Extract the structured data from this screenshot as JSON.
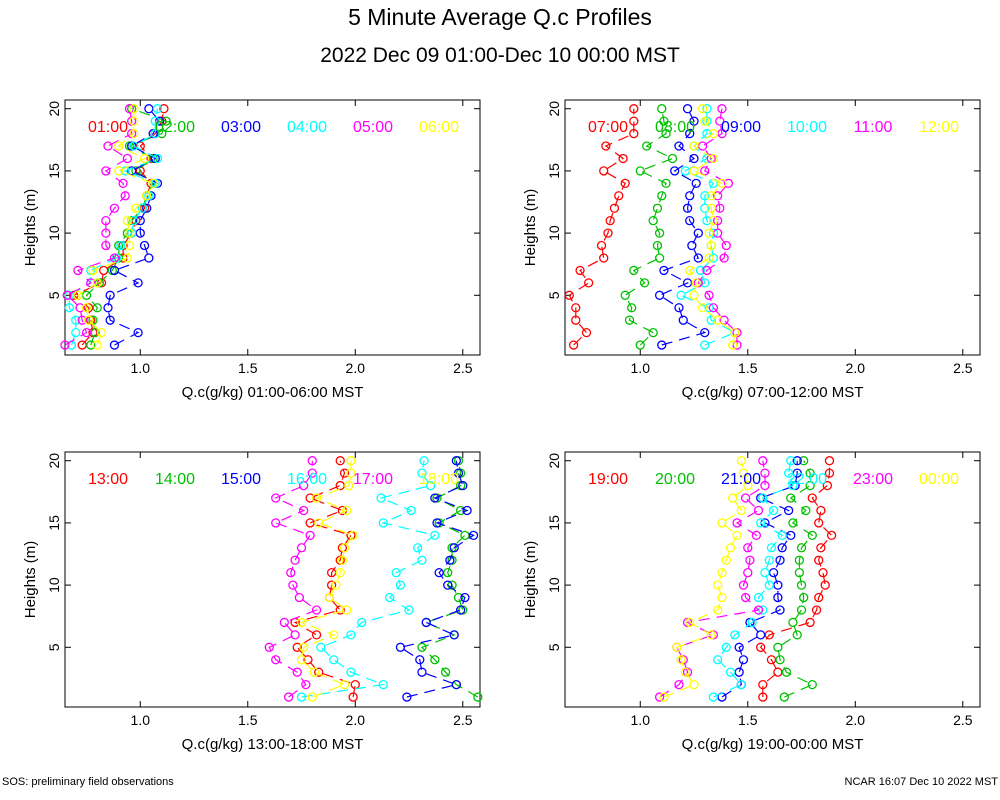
{
  "page": {
    "title": "5 Minute Average Q.c Profiles",
    "subtitle": "2022 Dec 09 01:00-Dec 10 00:00 MST",
    "footer_left": "SOS: preliminary field observations",
    "footer_right": "NCAR 16:07 Dec 10 2022 MST"
  },
  "colors": [
    "#ff0000",
    "#00c000",
    "#0000ff",
    "#00ffff",
    "#ff00ff",
    "#ffff00"
  ],
  "chart_data": [
    {
      "type": "line",
      "xlabel": "Q.c(g/kg) 01:00-06:00 MST",
      "ylabel": "Heights (m)",
      "xlim": [
        0.65,
        2.58
      ],
      "ylim": [
        0.2,
        20.7
      ],
      "xticks": [
        1.0,
        1.5,
        2.0,
        2.5
      ],
      "yticks": [
        5,
        10,
        15,
        20
      ],
      "heights": [
        1,
        2,
        3,
        4,
        5,
        6,
        7,
        8,
        9,
        10,
        11,
        12,
        13,
        14,
        15,
        16,
        17,
        18,
        19,
        20
      ],
      "series": [
        {
          "name": "01:00",
          "values": [
            0.73,
            0.78,
            0.77,
            0.76,
            0.69,
            0.82,
            0.83,
            0.92,
            0.92,
            0.96,
            0.98,
            1.02,
            1.03,
            1.05,
            1.0,
            1.05,
            1.0,
            1.07,
            1.1,
            1.11
          ]
        },
        {
          "name": "02:00",
          "values": [
            0.77,
            0.79,
            0.78,
            0.8,
            0.75,
            0.81,
            0.87,
            0.9,
            0.9,
            0.94,
            0.96,
            1.01,
            1.03,
            1.06,
            0.98,
            1.06,
            0.95,
            1.1,
            1.12,
            0.96
          ]
        },
        {
          "name": "03:00",
          "values": [
            0.88,
            0.99,
            0.86,
            0.85,
            0.86,
            0.99,
            0.88,
            1.04,
            1.02,
            1.0,
            1.0,
            1.03,
            1.05,
            1.08,
            0.96,
            1.07,
            0.96,
            1.06,
            1.09,
            1.04
          ]
        },
        {
          "name": "04:00",
          "values": [
            0.68,
            0.7,
            0.7,
            0.67,
            0.67,
            0.77,
            0.77,
            0.89,
            0.91,
            0.96,
            0.97,
            1.01,
            1.04,
            1.07,
            0.93,
            1.08,
            0.97,
            1.07,
            1.07,
            1.08
          ]
        },
        {
          "name": "05:00",
          "values": [
            0.65,
            0.75,
            0.73,
            0.72,
            0.66,
            0.77,
            0.71,
            0.88,
            0.84,
            0.84,
            0.84,
            0.88,
            0.93,
            0.92,
            0.84,
            0.94,
            0.85,
            0.96,
            0.96,
            0.95
          ]
        },
        {
          "name": "06:00",
          "values": [
            0.8,
            0.82,
            0.76,
            0.75,
            0.71,
            0.8,
            0.78,
            0.94,
            0.95,
            0.95,
            0.94,
            0.98,
            1.03,
            1.06,
            0.9,
            1.02,
            0.9,
            0.97,
            0.97,
            0.97
          ]
        }
      ],
      "legend": [
        "01:00",
        "02:00",
        "03:00",
        "04:00",
        "05:00",
        "06:00"
      ]
    },
    {
      "type": "line",
      "xlabel": "Q.c(g/kg) 07:00-12:00 MST",
      "ylabel": "Heights (m)",
      "xlim": [
        0.65,
        2.58
      ],
      "ylim": [
        0.2,
        20.7
      ],
      "xticks": [
        1.0,
        1.5,
        2.0,
        2.5
      ],
      "yticks": [
        5,
        10,
        15,
        20
      ],
      "heights": [
        1,
        2,
        3,
        4,
        5,
        6,
        7,
        8,
        9,
        10,
        11,
        12,
        13,
        14,
        15,
        16,
        17,
        18,
        19,
        20
      ],
      "series": [
        {
          "name": "07:00",
          "values": [
            0.69,
            0.75,
            0.7,
            0.7,
            0.67,
            0.76,
            0.72,
            0.83,
            0.82,
            0.85,
            0.86,
            0.88,
            0.9,
            0.93,
            0.83,
            0.92,
            0.84,
            0.97,
            0.97,
            0.97
          ]
        },
        {
          "name": "08:00",
          "values": [
            1.0,
            1.06,
            0.95,
            0.96,
            0.93,
            1.02,
            0.97,
            1.09,
            1.08,
            1.09,
            1.06,
            1.08,
            1.1,
            1.12,
            1.0,
            1.15,
            1.03,
            1.12,
            1.11,
            1.1
          ]
        },
        {
          "name": "09:00",
          "values": [
            1.1,
            1.3,
            1.2,
            1.18,
            1.09,
            1.22,
            1.11,
            1.27,
            1.24,
            1.27,
            1.23,
            1.22,
            1.23,
            1.26,
            1.16,
            1.25,
            1.18,
            1.23,
            1.25,
            1.22
          ]
        },
        {
          "name": "10:00",
          "values": [
            1.3,
            1.44,
            1.33,
            1.32,
            1.19,
            1.3,
            1.28,
            1.34,
            1.33,
            1.34,
            1.31,
            1.3,
            1.3,
            1.34,
            1.21,
            1.31,
            1.25,
            1.31,
            1.31,
            1.31
          ]
        },
        {
          "name": "11:00",
          "values": [
            1.45,
            1.45,
            1.39,
            1.34,
            1.32,
            1.27,
            1.31,
            1.39,
            1.4,
            1.36,
            1.36,
            1.37,
            1.36,
            1.41,
            1.3,
            1.33,
            1.29,
            1.38,
            1.37,
            1.38
          ]
        },
        {
          "name": "12:00",
          "values": [
            1.43,
            1.44,
            1.36,
            1.29,
            1.25,
            1.26,
            1.23,
            1.32,
            1.33,
            1.32,
            1.34,
            1.33,
            1.33,
            1.38,
            1.25,
            1.34,
            1.25,
            1.34,
            1.3,
            1.29
          ]
        }
      ],
      "legend": [
        "07:00",
        "08:00",
        "09:00",
        "10:00",
        "11:00",
        "12:00"
      ]
    },
    {
      "type": "line",
      "xlabel": "Q.c(g/kg) 13:00-18:00 MST",
      "ylabel": "Heights (m)",
      "xlim": [
        0.65,
        2.58
      ],
      "ylim": [
        0.2,
        20.7
      ],
      "xticks": [
        1.0,
        1.5,
        2.0,
        2.5
      ],
      "yticks": [
        5,
        10,
        15,
        20
      ],
      "heights": [
        1,
        2,
        3,
        4,
        5,
        6,
        7,
        8,
        9,
        10,
        11,
        12,
        13,
        14,
        15,
        16,
        17,
        18,
        19,
        20
      ],
      "series": [
        {
          "name": "13:00",
          "values": [
            1.99,
            2.0,
            1.83,
            1.78,
            1.73,
            1.82,
            1.72,
            1.93,
            1.88,
            1.89,
            1.89,
            1.93,
            1.94,
            1.98,
            1.79,
            1.94,
            1.79,
            1.93,
            1.95,
            1.93
          ]
        },
        {
          "name": "14:00",
          "values": [
            2.57,
            2.47,
            2.42,
            2.37,
            2.31,
            2.46,
            2.33,
            2.5,
            2.48,
            2.45,
            2.43,
            2.45,
            2.45,
            2.51,
            2.39,
            2.49,
            2.38,
            2.49,
            2.49,
            2.48
          ]
        },
        {
          "name": "15:00",
          "values": [
            2.24,
            2.47,
            2.31,
            2.3,
            2.21,
            2.46,
            2.33,
            2.49,
            2.51,
            2.43,
            2.39,
            2.44,
            2.46,
            2.55,
            2.38,
            2.52,
            2.37,
            2.5,
            2.48,
            2.47
          ]
        },
        {
          "name": "16:00",
          "values": [
            1.75,
            2.13,
            1.98,
            1.9,
            1.84,
            1.98,
            2.03,
            2.25,
            2.16,
            2.21,
            2.19,
            2.31,
            2.29,
            2.37,
            2.13,
            2.26,
            2.12,
            2.35,
            2.31,
            2.32
          ]
        },
        {
          "name": "17:00",
          "values": [
            1.69,
            1.77,
            1.73,
            1.63,
            1.6,
            1.72,
            1.67,
            1.82,
            1.74,
            1.71,
            1.7,
            1.72,
            1.75,
            1.79,
            1.63,
            1.76,
            1.63,
            1.76,
            1.8,
            1.8
          ]
        },
        {
          "name": "18:00",
          "values": [
            1.8,
            1.95,
            1.81,
            1.75,
            1.76,
            1.9,
            1.75,
            1.96,
            1.88,
            1.91,
            1.93,
            1.94,
            1.95,
            1.99,
            1.83,
            1.96,
            1.82,
            1.97,
            1.98,
            1.98
          ]
        }
      ],
      "legend": [
        "13:00",
        "14:00",
        "15:00",
        "16:00",
        "17:00",
        "18:00"
      ]
    },
    {
      "type": "line",
      "xlabel": "Q.c(g/kg) 19:00-00:00 MST",
      "ylabel": "Heights (m)",
      "xlim": [
        0.65,
        2.58
      ],
      "ylim": [
        0.2,
        20.7
      ],
      "xticks": [
        1.0,
        1.5,
        2.0,
        2.5
      ],
      "yticks": [
        5,
        10,
        15,
        20
      ],
      "heights": [
        1,
        2,
        3,
        4,
        5,
        6,
        7,
        8,
        9,
        10,
        11,
        12,
        13,
        14,
        15,
        16,
        17,
        18,
        19,
        20
      ],
      "series": [
        {
          "name": "19:00",
          "values": [
            1.57,
            1.57,
            1.64,
            1.61,
            1.56,
            1.6,
            1.79,
            1.82,
            1.83,
            1.86,
            1.85,
            1.83,
            1.84,
            1.89,
            1.83,
            1.84,
            1.8,
            1.87,
            1.88,
            1.88
          ]
        },
        {
          "name": "20:00",
          "values": [
            1.67,
            1.8,
            1.68,
            1.65,
            1.64,
            1.73,
            1.71,
            1.75,
            1.76,
            1.75,
            1.74,
            1.74,
            1.75,
            1.8,
            1.71,
            1.77,
            1.7,
            1.79,
            1.79,
            1.76
          ]
        },
        {
          "name": "21:00",
          "values": [
            1.38,
            1.47,
            1.46,
            1.48,
            1.46,
            1.56,
            1.51,
            1.65,
            1.64,
            1.64,
            1.62,
            1.65,
            1.66,
            1.7,
            1.58,
            1.69,
            1.56,
            1.72,
            1.73,
            1.73
          ]
        },
        {
          "name": "22:00",
          "values": [
            1.34,
            1.47,
            1.42,
            1.36,
            1.4,
            1.44,
            1.52,
            1.57,
            1.55,
            1.6,
            1.58,
            1.6,
            1.61,
            1.66,
            1.56,
            1.62,
            1.57,
            1.71,
            1.69,
            1.7
          ]
        },
        {
          "name": "23:00",
          "values": [
            1.09,
            1.18,
            1.22,
            1.2,
            1.17,
            1.34,
            1.22,
            1.55,
            1.49,
            1.48,
            1.5,
            1.51,
            1.5,
            1.54,
            1.45,
            1.55,
            1.49,
            1.58,
            1.58,
            1.57
          ]
        },
        {
          "name": "00:00",
          "values": [
            1.11,
            1.25,
            1.21,
            1.19,
            1.17,
            1.33,
            1.23,
            1.36,
            1.38,
            1.36,
            1.38,
            1.4,
            1.42,
            1.45,
            1.38,
            1.47,
            1.43,
            1.5,
            1.48,
            1.47
          ]
        }
      ],
      "legend": [
        "19:00",
        "20:00",
        "21:00",
        "22:00",
        "23:00",
        "00:00"
      ]
    }
  ]
}
